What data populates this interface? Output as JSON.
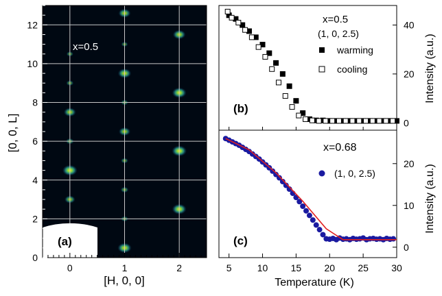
{
  "chart_data": [
    {
      "panel_label": "(a)",
      "type": "heatmap",
      "annotation": "x=0.5",
      "xlabel": "[H, 0, 0]",
      "ylabel": "[0, 0, L]",
      "xlim": [
        -0.5,
        2.5
      ],
      "ylim": [
        0,
        13
      ],
      "x_ticks": [
        0,
        1,
        2
      ],
      "y_ticks": [
        0,
        2,
        4,
        6,
        8,
        10,
        12
      ],
      "grid": true,
      "colormap": [
        "#000010",
        "#0b2a4a",
        "#1f7f7a",
        "#7fd24a",
        "#ffe600"
      ],
      "peaks": [
        {
          "h": 0,
          "l": 0.6,
          "intensity": 0.55
        },
        {
          "h": 0,
          "l": 3.0,
          "intensity": 0.6
        },
        {
          "h": 0,
          "l": 4.5,
          "intensity": 1.0
        },
        {
          "h": 0,
          "l": 6.0,
          "intensity": 0.35
        },
        {
          "h": 0,
          "l": 7.5,
          "intensity": 0.75
        },
        {
          "h": 0,
          "l": 9.0,
          "intensity": 0.3
        },
        {
          "h": 0,
          "l": 10.5,
          "intensity": 0.25
        },
        {
          "h": 1,
          "l": 0.5,
          "intensity": 0.9
        },
        {
          "h": 1,
          "l": 2.0,
          "intensity": 0.3
        },
        {
          "h": 1,
          "l": 3.5,
          "intensity": 0.35
        },
        {
          "h": 1,
          "l": 5.0,
          "intensity": 0.3
        },
        {
          "h": 1,
          "l": 6.5,
          "intensity": 0.7
        },
        {
          "h": 1,
          "l": 8.0,
          "intensity": 0.3
        },
        {
          "h": 1,
          "l": 9.5,
          "intensity": 0.85
        },
        {
          "h": 1,
          "l": 11.0,
          "intensity": 0.25
        },
        {
          "h": 1,
          "l": 12.6,
          "intensity": 0.75
        },
        {
          "h": 2,
          "l": 2.5,
          "intensity": 0.95
        },
        {
          "h": 2,
          "l": 5.5,
          "intensity": 1.0
        },
        {
          "h": 2,
          "l": 8.5,
          "intensity": 0.95
        },
        {
          "h": 2,
          "l": 11.5,
          "intensity": 0.8
        }
      ]
    },
    {
      "panel_label": "(b)",
      "type": "scatter",
      "annotation": "x=0.5",
      "reflection": "(1, 0, 2.5)",
      "ylabel": "Intensity (a.u.)",
      "xlim": [
        3.5,
        30
      ],
      "ylim": [
        -3,
        48
      ],
      "y_ticks": [
        0,
        20,
        40
      ],
      "series": [
        {
          "name": "warming",
          "marker": "filled-square",
          "x": [
            5.0,
            6.0,
            7.0,
            8.0,
            9.0,
            10.0,
            11.0,
            12.0,
            13.0,
            14.0,
            15.0,
            16.0,
            17.0,
            18.0,
            19.0,
            20.0,
            21.0,
            22.0,
            23.0,
            24.0,
            25.0,
            26.0,
            27.0,
            28.0,
            29.0,
            30.0
          ],
          "y": [
            44.0,
            42.5,
            40.0,
            37.5,
            35.0,
            32.0,
            28.5,
            24.5,
            20.0,
            15.0,
            9.0,
            4.0,
            1.5,
            1.0,
            1.0,
            0.8,
            0.8,
            0.8,
            0.8,
            0.8,
            0.8,
            0.8,
            0.8,
            0.8,
            0.8,
            0.8
          ]
        },
        {
          "name": "cooling",
          "marker": "open-square",
          "x": [
            4.8,
            5.4,
            6.4,
            7.4,
            8.4,
            9.4,
            10.4,
            11.4,
            12.4,
            13.4,
            14.4,
            15.4,
            16.4,
            17.4,
            18.4,
            19.4,
            20.4,
            21.4,
            22.4,
            23.4,
            24.4,
            25.4,
            26.4,
            27.4,
            28.4,
            29.4
          ],
          "y": [
            45.5,
            43.0,
            41.0,
            38.0,
            35.0,
            31.0,
            27.0,
            22.0,
            16.5,
            11.0,
            6.5,
            3.0,
            1.5,
            1.0,
            0.8,
            0.8,
            0.8,
            0.8,
            0.8,
            0.8,
            0.8,
            0.8,
            0.8,
            0.8,
            0.8,
            0.8
          ]
        }
      ]
    },
    {
      "panel_label": "(c)",
      "type": "scatter",
      "annotation": "x=0.68",
      "xlabel": "Temperature (K)",
      "ylabel": "Intensity (a.u.)",
      "xlim": [
        3.5,
        30
      ],
      "ylim": [
        -2.5,
        28
      ],
      "x_ticks": [
        5,
        10,
        15,
        20,
        25,
        30
      ],
      "y_ticks": [
        0,
        10,
        20
      ],
      "series": [
        {
          "name": "(1, 0, 2.5)",
          "marker": "filled-circle",
          "color": "#1a1aa0",
          "x": [
            4.5,
            5.0,
            5.5,
            6.0,
            6.5,
            7.0,
            7.5,
            8.0,
            8.5,
            9.0,
            9.5,
            10.0,
            10.5,
            11.0,
            11.5,
            12.0,
            12.5,
            13.0,
            13.5,
            14.0,
            14.5,
            15.0,
            15.5,
            16.0,
            16.5,
            17.0,
            17.5,
            18.0,
            18.5,
            19.0,
            19.5,
            20.0,
            20.5,
            21.0,
            21.5,
            22.0,
            22.5,
            23.0,
            23.5,
            24.0,
            24.5,
            25.0,
            25.5,
            26.0,
            26.5,
            27.0,
            27.5,
            28.0,
            28.5,
            29.0,
            29.5
          ],
          "y": [
            26.0,
            25.6,
            25.2,
            24.8,
            24.4,
            23.9,
            23.4,
            22.9,
            22.3,
            21.7,
            21.1,
            20.4,
            19.7,
            19.0,
            18.2,
            17.4,
            16.6,
            15.7,
            14.8,
            13.9,
            12.9,
            11.9,
            10.9,
            9.8,
            8.7,
            7.6,
            6.5,
            5.3,
            4.2,
            3.0,
            2.0,
            1.9,
            2.1,
            1.8,
            2.2,
            1.9,
            2.0,
            1.8,
            2.1,
            1.9,
            2.0,
            2.2,
            1.8,
            2.0,
            2.1,
            1.9,
            2.0,
            1.8,
            2.1,
            1.9,
            2.0
          ]
        }
      ],
      "fit": {
        "color": "#e02020",
        "x": [
          4.5,
          8,
          12,
          16,
          19.5,
          22,
          30
        ],
        "y": [
          26.0,
          23.3,
          17.8,
          11.0,
          4.4,
          1.8,
          1.8
        ]
      }
    }
  ]
}
